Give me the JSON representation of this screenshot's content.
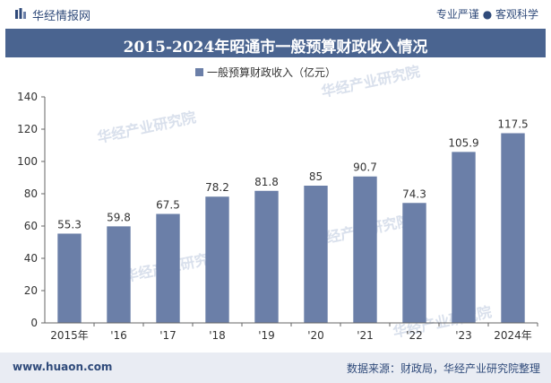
{
  "header": {
    "brand": "华经情报网",
    "tagline": "专业严谨 ● 客观科学"
  },
  "watermark": "华经产业研究院",
  "footer": {
    "site": "www.huaon.com",
    "source": "数据来源：财政局，华经产业研究院整理"
  },
  "colors": {
    "bar": "#6b7fa8",
    "title_bg": "#4a6490",
    "brand": "#2f4a7a"
  },
  "chart_data": {
    "type": "bar",
    "title": "2015-2024年昭通市一般预算财政收入情况",
    "legend": "一般预算财政收入（亿元）",
    "legend_position": "top-center",
    "categories": [
      "2015年",
      "'16",
      "'17",
      "'18",
      "'19",
      "'20",
      "'21",
      "'22",
      "'23",
      "2024年"
    ],
    "values": [
      55.3,
      59.8,
      67.5,
      78.2,
      81.8,
      85,
      90.7,
      74.3,
      105.9,
      117.5
    ],
    "value_labels": [
      "55.3",
      "59.8",
      "67.5",
      "78.2",
      "81.8",
      "85",
      "90.7",
      "74.3",
      "105.9",
      "117.5"
    ],
    "ylim": [
      0,
      140
    ],
    "yticks": [
      0,
      20,
      40,
      60,
      80,
      100,
      120,
      140
    ],
    "grid": false
  }
}
